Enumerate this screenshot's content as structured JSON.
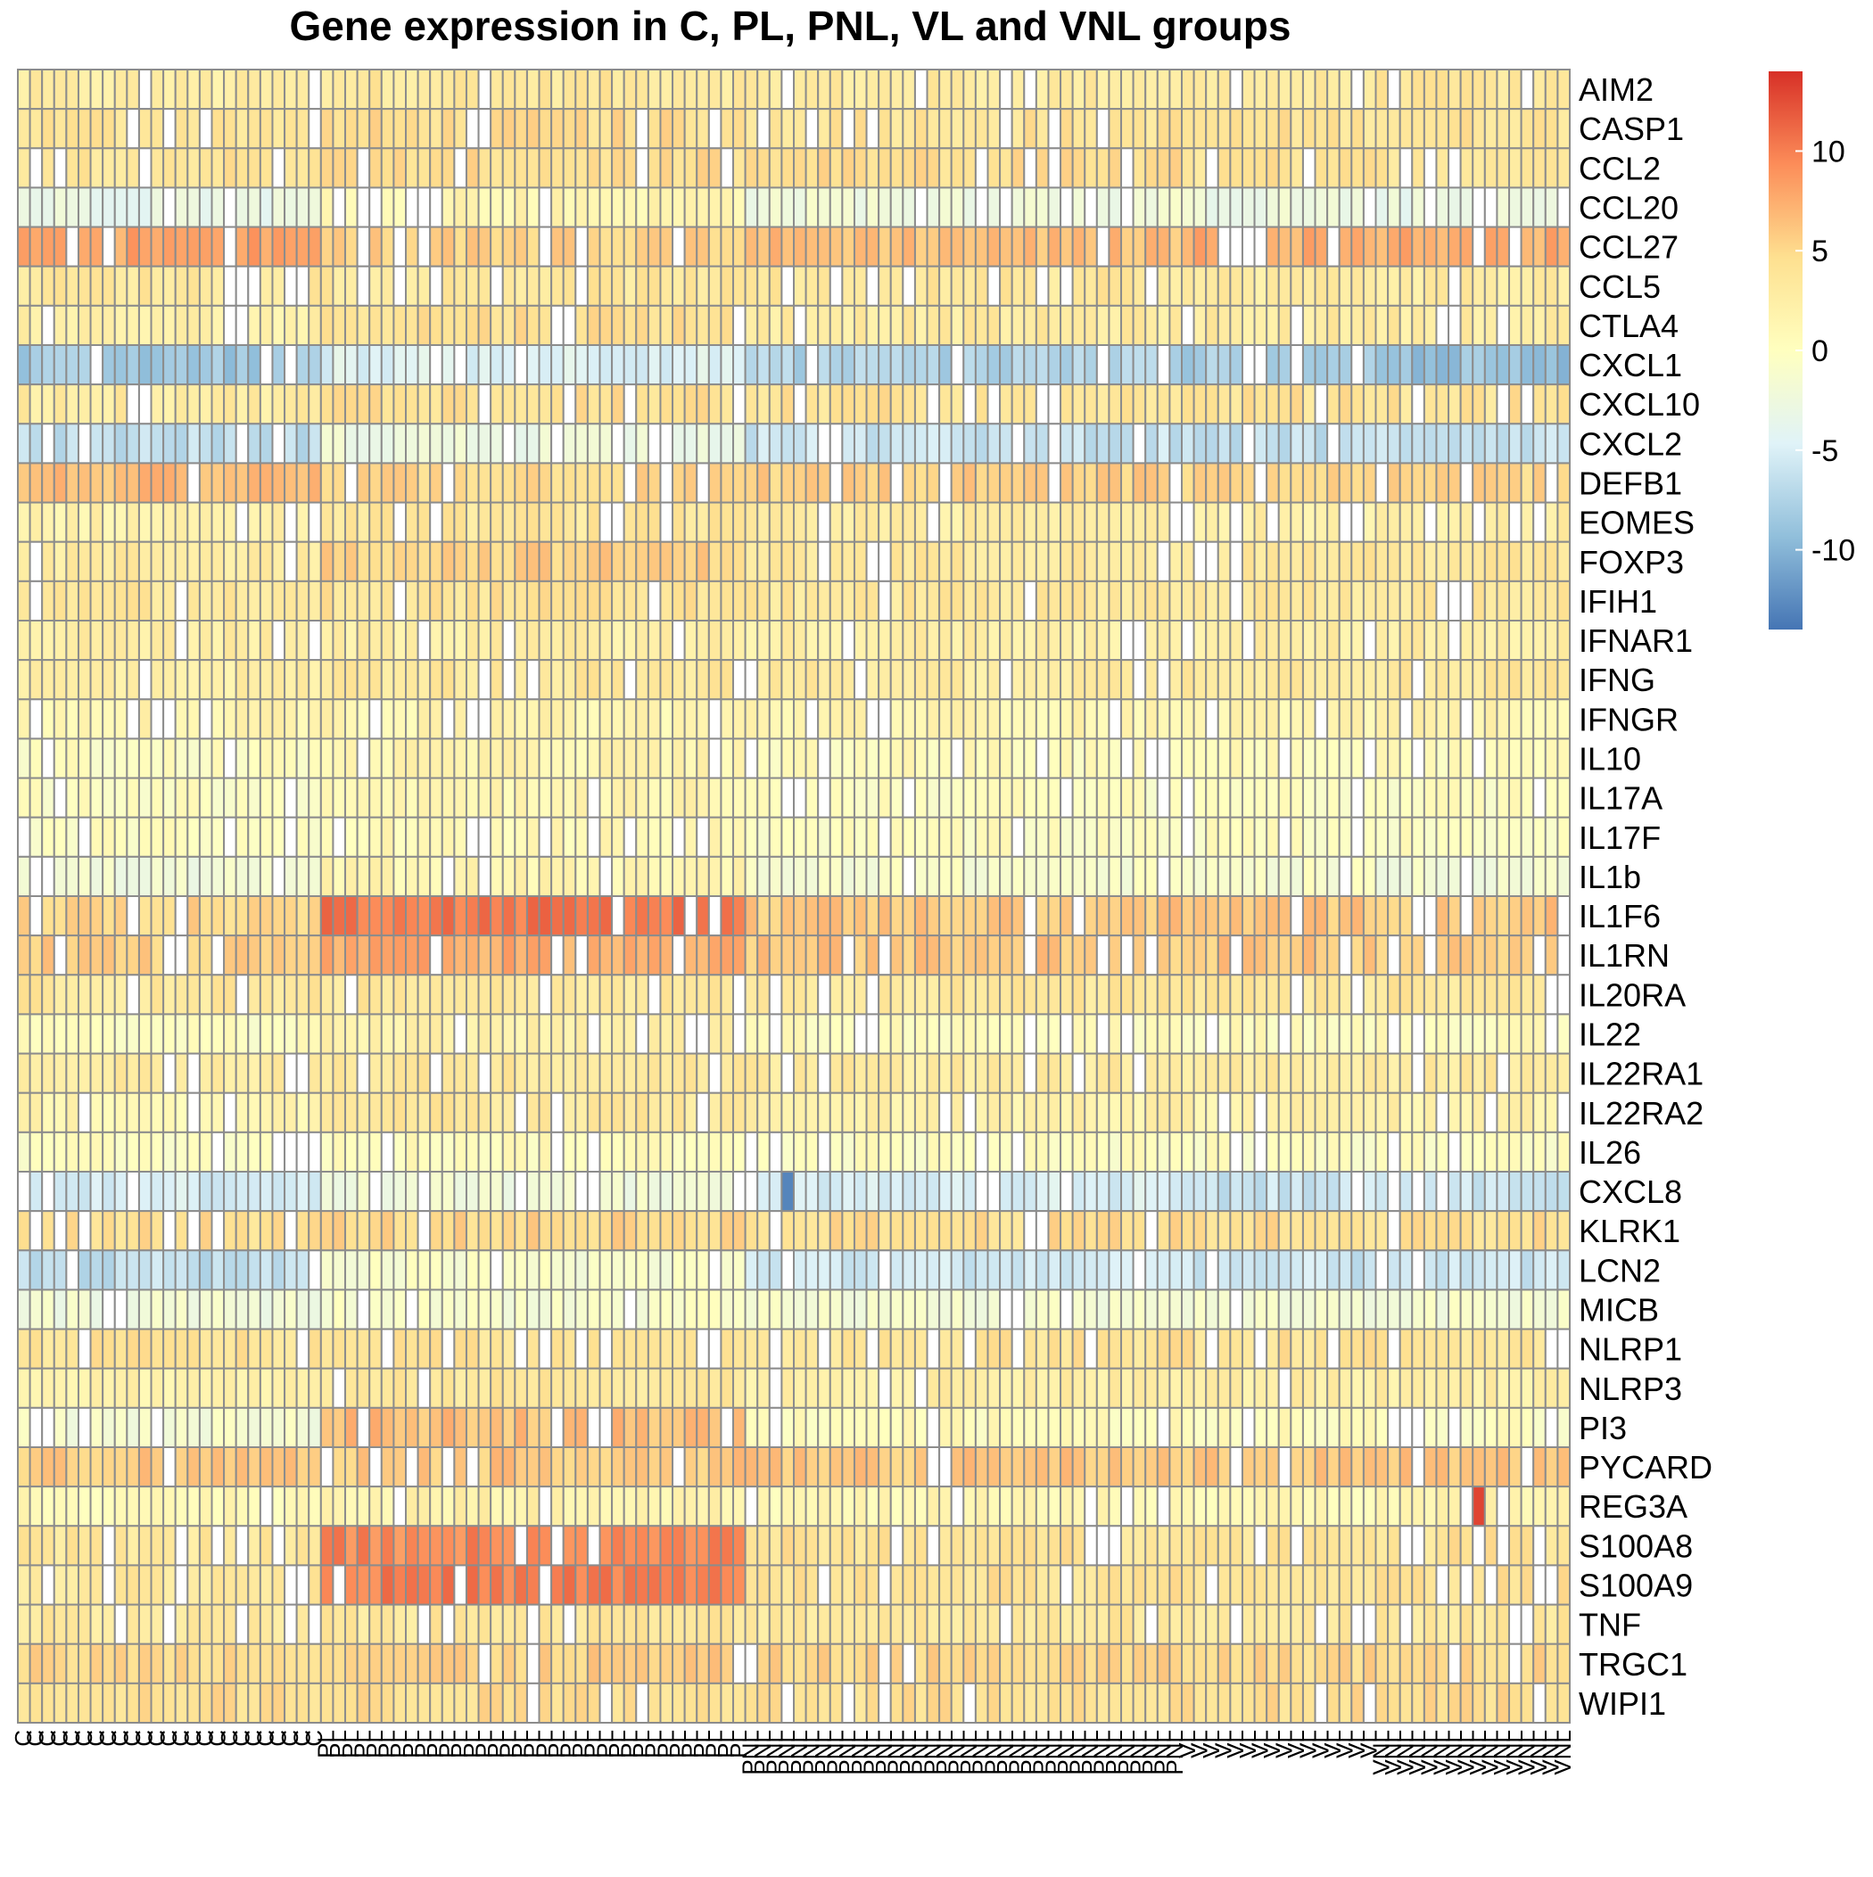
{
  "chart_data": {
    "type": "heatmap",
    "title": "Gene expression in C, PL, PNL, VL and VNL groups",
    "rows": [
      "AIM2",
      "CASP1",
      "CCL2",
      "CCL20",
      "CCL27",
      "CCL5",
      "CTLA4",
      "CXCL1",
      "CXCL10",
      "CXCL2",
      "DEFB1",
      "EOMES",
      "FOXP3",
      "IFIH1",
      "IFNAR1",
      "IFNG",
      "IFNGR",
      "IL10",
      "IL17A",
      "IL17F",
      "IL1b",
      "IL1F6",
      "IL1RN",
      "IL20RA",
      "IL22",
      "IL22RA1",
      "IL22RA2",
      "IL26",
      "CXCL8",
      "KLRK1",
      "LCN2",
      "MICB",
      "NLRP1",
      "NLRP3",
      "PI3",
      "PYCARD",
      "REG3A",
      "S100A8",
      "S100A9",
      "TNF",
      "TRGC1",
      "WIPI1"
    ],
    "column_count": 128,
    "column_groups": [
      {
        "name": "C",
        "count": 25
      },
      {
        "name": "PL",
        "count": 35
      },
      {
        "name": "PNL",
        "count": 36
      },
      {
        "name": "VL",
        "count": 16
      },
      {
        "name": "VNL",
        "count": 16
      }
    ],
    "row_values": {
      "AIM2": {
        "C": 2.5,
        "PL": 3.5,
        "PNL": 3.0,
        "VL": 3.0,
        "VNL": 3.5
      },
      "CASP1": {
        "C": 4.0,
        "PL": 4.5,
        "PNL": 4.0,
        "VL": 4.0,
        "VNL": 4.0
      },
      "CCL2": {
        "C": 4.0,
        "PL": 4.5,
        "PNL": 4.5,
        "VL": 4.0,
        "VNL": 4.0
      },
      "CCL20": {
        "C": -3.0,
        "PL": 1.5,
        "PNL": -2.0,
        "VL": -2.5,
        "VNL": -3.0
      },
      "CCL27": {
        "C": 8.0,
        "PL": 5.5,
        "PNL": 6.5,
        "VL": 7.5,
        "VNL": 7.5
      },
      "CCL5": {
        "C": 3.5,
        "PL": 3.5,
        "PNL": 3.5,
        "VL": 3.0,
        "VNL": 3.0
      },
      "CTLA4": {
        "C": 2.0,
        "PL": 4.5,
        "PNL": 3.0,
        "VL": 3.0,
        "VNL": 3.0
      },
      "CXCL1": {
        "C": -8.5,
        "PL": -4.5,
        "PNL": -7.5,
        "VL": -8.0,
        "VNL": -9.0
      },
      "CXCL10": {
        "C": 3.0,
        "PL": 4.5,
        "PNL": 4.0,
        "VL": 4.0,
        "VNL": 4.0
      },
      "CXCL2": {
        "C": -6.5,
        "PL": -2.5,
        "PNL": -6.0,
        "VL": -6.5,
        "VNL": -6.0
      },
      "DEFB1": {
        "C": 6.5,
        "PL": 5.0,
        "PNL": 5.5,
        "VL": 5.0,
        "VNL": 5.0
      },
      "EOMES": {
        "C": 2.0,
        "PL": 3.5,
        "PNL": 2.5,
        "VL": 2.5,
        "VNL": 2.5
      },
      "FOXP3": {
        "C": 3.0,
        "PL": 5.5,
        "PNL": 3.5,
        "VL": 3.5,
        "VNL": 3.5
      },
      "IFIH1": {
        "C": 3.5,
        "PL": 4.0,
        "PNL": 3.5,
        "VL": 3.5,
        "VNL": 3.5
      },
      "IFNAR1": {
        "C": 2.5,
        "PL": 2.5,
        "PNL": 2.5,
        "VL": 2.5,
        "VNL": 2.5
      },
      "IFNG": {
        "C": 2.5,
        "PL": 3.5,
        "PNL": 3.0,
        "VL": 3.5,
        "VNL": 3.5
      },
      "IFNGR": {
        "C": 1.5,
        "PL": 1.5,
        "PNL": 1.5,
        "VL": 1.5,
        "VNL": 1.5
      },
      "IL10": {
        "C": 0.0,
        "PL": 1.5,
        "PNL": 0.5,
        "VL": 0.5,
        "VNL": 0.5
      },
      "IL17A": {
        "C": 0.0,
        "PL": 1.5,
        "PNL": 0.0,
        "VL": 0.0,
        "VNL": 0.0
      },
      "IL17F": {
        "C": 0.0,
        "PL": 1.0,
        "PNL": 0.0,
        "VL": 0.0,
        "VNL": 0.0
      },
      "IL1b": {
        "C": -2.0,
        "PL": 1.5,
        "PNL": -1.0,
        "VL": -1.0,
        "VNL": -1.5
      },
      "IL1F6": {
        "C": 5.0,
        "PL": 10.5,
        "PNL": 6.0,
        "VL": 6.0,
        "VNL": 6.0
      },
      "IL1RN": {
        "C": 5.5,
        "PL": 7.5,
        "PNL": 6.0,
        "VL": 6.0,
        "VNL": 6.0
      },
      "IL20RA": {
        "C": 3.5,
        "PL": 3.5,
        "PNL": 3.5,
        "VL": 3.5,
        "VNL": 3.5
      },
      "IL22": {
        "C": 0.0,
        "PL": 2.0,
        "PNL": 0.5,
        "VL": 0.5,
        "VNL": 0.5
      },
      "IL22RA1": {
        "C": 3.0,
        "PL": 3.5,
        "PNL": 3.0,
        "VL": 3.0,
        "VNL": 3.0
      },
      "IL22RA2": {
        "C": 1.5,
        "PL": 3.5,
        "PNL": 2.0,
        "VL": 2.0,
        "VNL": 2.0
      },
      "IL26": {
        "C": 0.0,
        "PL": 0.5,
        "PNL": 0.0,
        "VL": 0.0,
        "VNL": 0.0
      },
      "CXCL8": {
        "C": -5.0,
        "PL": -2.0,
        "PNL": -5.0,
        "VL": -6.0,
        "VNL": -6.0
      },
      "KLRK1": {
        "C": 4.5,
        "PL": 5.0,
        "PNL": 4.5,
        "VL": 4.5,
        "VNL": 4.5
      },
      "LCN2": {
        "C": -6.5,
        "PL": -1.0,
        "PNL": -5.5,
        "VL": -6.0,
        "VNL": -6.0
      },
      "MICB": {
        "C": -2.0,
        "PL": -1.0,
        "PNL": -1.5,
        "VL": -1.5,
        "VNL": -1.5
      },
      "NLRP1": {
        "C": 4.0,
        "PL": 4.0,
        "PNL": 4.0,
        "VL": 4.0,
        "VNL": 4.0
      },
      "NLRP3": {
        "C": 2.0,
        "PL": 3.5,
        "PNL": 2.5,
        "VL": 2.5,
        "VNL": 2.5
      },
      "PI3": {
        "C": -1.5,
        "PL": 6.5,
        "PNL": 0.5,
        "VL": 0.5,
        "VNL": 0.0
      },
      "PYCARD": {
        "C": 6.0,
        "PL": 6.0,
        "PNL": 6.0,
        "VL": 6.0,
        "VNL": 6.0
      },
      "REG3A": {
        "C": 1.0,
        "PL": 2.0,
        "PNL": 1.0,
        "VL": 1.0,
        "VNL": 1.5
      },
      "S100A8": {
        "C": 3.5,
        "PL": 9.5,
        "PNL": 4.0,
        "VL": 4.0,
        "VNL": 4.0
      },
      "S100A9": {
        "C": 3.5,
        "PL": 10.0,
        "PNL": 4.0,
        "VL": 4.0,
        "VNL": 4.0
      },
      "TNF": {
        "C": 3.5,
        "PL": 3.5,
        "PNL": 3.5,
        "VL": 3.5,
        "VNL": 3.5
      },
      "TRGC1": {
        "C": 5.0,
        "PL": 5.5,
        "PNL": 5.0,
        "VL": 5.0,
        "VNL": 5.0
      },
      "WIPI1": {
        "C": 4.5,
        "PL": 4.5,
        "PNL": 4.5,
        "VL": 4.5,
        "VNL": 4.5
      }
    },
    "special_cells": [
      {
        "row": "REG3A",
        "column_index": 120,
        "value": 13
      },
      {
        "row": "CXCL8",
        "column_index": 63,
        "value": -13
      }
    ],
    "color_scale": {
      "min": -14,
      "max": 14,
      "ticks": [
        10,
        5,
        0,
        -5,
        -10
      ],
      "tick_labels": [
        "10",
        "5",
        "0",
        "-5",
        "-10"
      ],
      "colors": [
        "#4575B4",
        "#91BFDB",
        "#E0F3F8",
        "#FFFFBF",
        "#FEE090",
        "#FC8D59",
        "#D73027"
      ],
      "legend_placement": "right"
    }
  }
}
